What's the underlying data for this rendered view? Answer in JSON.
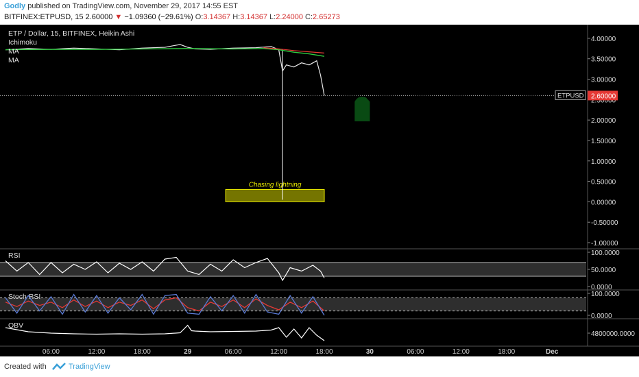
{
  "header": {
    "author": "Godly",
    "published_text": "published on TradingView.com, November 29, 2017 14:55 EST",
    "symbol_line": "BITFINEX:ETPUSD, 15",
    "last_price": "2.60000",
    "change": "−1.09360 (−29.61%)",
    "o_label": "O:",
    "o_value": "3.14367",
    "h_label": "H:",
    "h_value": "3.14367",
    "l_label": "L:",
    "l_value": "2.24000",
    "c_label": "C:",
    "c_value": "2.65273"
  },
  "footer": {
    "created_with": "Created with",
    "brand": "TradingView"
  },
  "colors": {
    "background": "#000000",
    "ma_green": "#2ecc40",
    "ma_red": "#e53935",
    "annotation_fill": "#8a8a00",
    "annotation_border": "#e6e600",
    "price_tag": "#e53935",
    "rsi_line": "#ffffff",
    "stoch_k": "#5b7bd5",
    "stoch_d": "#e53935"
  },
  "chart_data": [
    {
      "type": "line",
      "title": "ETP / Dollar, 15, BITFINEX, Heikin Ashi",
      "indicator_labels": [
        "Ichimoku",
        "MA",
        "MA"
      ],
      "price_tag_label": "ETPUSD",
      "price_tag_value": "2.60000",
      "annotation_text": "Chasing lightning",
      "annotation_zone": [
        0.0,
        0.3
      ],
      "ylim": [
        -1.0,
        4.2
      ],
      "y_ticks": [
        "4.00000",
        "3.50000",
        "3.00000",
        "2.50000",
        "2.00000",
        "1.50000",
        "1.00000",
        "0.50000",
        "0.00000",
        "-0.50000",
        "-1.00000"
      ],
      "y_tick_values": [
        4.0,
        3.5,
        3.0,
        2.5,
        2.0,
        1.5,
        1.0,
        0.5,
        0.0,
        -0.5,
        -1.0
      ],
      "x_labels": [
        "06:00",
        "12:00",
        "18:00",
        "29",
        "06:00",
        "12:00",
        "18:00",
        "30",
        "06:00",
        "12:00",
        "18:00",
        "Dec"
      ],
      "x_label_hours": [
        6,
        12,
        18,
        24,
        30,
        36,
        42,
        48,
        54,
        60,
        66,
        72
      ],
      "x_range_hours": [
        0,
        76.5
      ],
      "series": [
        {
          "name": "Price",
          "x": [
            0,
            3,
            6,
            9,
            12,
            15,
            18,
            21,
            23,
            24,
            25,
            27,
            30,
            33,
            35,
            36,
            36.5,
            37,
            38,
            39,
            40,
            41,
            41.5,
            42
          ],
          "values": [
            3.72,
            3.75,
            3.73,
            3.76,
            3.74,
            3.72,
            3.76,
            3.78,
            3.85,
            3.78,
            3.74,
            3.73,
            3.76,
            3.77,
            3.8,
            3.72,
            3.2,
            3.35,
            3.3,
            3.4,
            3.35,
            3.45,
            3.1,
            2.6
          ]
        },
        {
          "name": "MA",
          "x": [
            0,
            6,
            12,
            18,
            24,
            30,
            34,
            36,
            38,
            40,
            42
          ],
          "values": [
            3.72,
            3.73,
            3.73,
            3.74,
            3.75,
            3.74,
            3.75,
            3.72,
            3.66,
            3.62,
            3.56
          ]
        },
        {
          "name": "MA",
          "x": [
            34,
            36,
            38,
            40,
            42
          ],
          "values": [
            3.77,
            3.74,
            3.7,
            3.67,
            3.64
          ]
        }
      ],
      "spike_low": {
        "x": 36.5,
        "value": 0.05
      }
    },
    {
      "type": "line",
      "title": "RSI",
      "ylim": [
        0,
        100
      ],
      "y_ticks": [
        "100.0000",
        "50.0000",
        "0.0000"
      ],
      "y_tick_values": [
        100,
        50,
        0
      ],
      "bands": [
        30,
        70
      ],
      "x": [
        0,
        1.5,
        3,
        4.5,
        6,
        7.5,
        9,
        10.5,
        12,
        13.5,
        15,
        16.5,
        18,
        19.5,
        21,
        22.5,
        24,
        25.5,
        27,
        28.5,
        30,
        31.5,
        33,
        34.5,
        36,
        36.5,
        37.5,
        39,
        40.5,
        41.5,
        42
      ],
      "values": [
        75,
        45,
        70,
        35,
        70,
        40,
        65,
        50,
        72,
        40,
        68,
        50,
        72,
        45,
        80,
        85,
        45,
        35,
        65,
        45,
        78,
        55,
        70,
        82,
        40,
        18,
        55,
        45,
        62,
        45,
        25
      ]
    },
    {
      "type": "line",
      "title": "Stoch RSI",
      "ylim": [
        0,
        100
      ],
      "y_ticks": [
        "100.0000",
        "0.0000"
      ],
      "y_tick_values": [
        100,
        0
      ],
      "bands": [
        20,
        80
      ],
      "series": [
        {
          "name": "K",
          "x": [
            0,
            1.5,
            3,
            4.5,
            6,
            7.5,
            9,
            10.5,
            12,
            13.5,
            15,
            16.5,
            18,
            19.5,
            21,
            22.5,
            24,
            25.5,
            27,
            28.5,
            30,
            31.5,
            33,
            34.5,
            36,
            37.5,
            39,
            40.5,
            42
          ],
          "values": [
            80,
            10,
            90,
            20,
            85,
            5,
            95,
            15,
            90,
            10,
            80,
            25,
            95,
            5,
            90,
            95,
            10,
            5,
            85,
            20,
            90,
            10,
            95,
            15,
            5,
            90,
            10,
            85,
            0
          ]
        },
        {
          "name": "D",
          "x": [
            0,
            1.5,
            3,
            4.5,
            6,
            7.5,
            9,
            10.5,
            12,
            13.5,
            15,
            16.5,
            18,
            19.5,
            21,
            22.5,
            24,
            25.5,
            27,
            28.5,
            30,
            31.5,
            33,
            34.5,
            36,
            37.5,
            39,
            40.5,
            42
          ],
          "values": [
            60,
            40,
            65,
            45,
            60,
            35,
            70,
            40,
            65,
            35,
            60,
            45,
            70,
            30,
            70,
            80,
            35,
            20,
            60,
            40,
            70,
            35,
            75,
            45,
            25,
            60,
            35,
            65,
            20
          ]
        }
      ]
    },
    {
      "type": "line",
      "title": "OBV",
      "y_ticks": [
        "4800000.0000"
      ],
      "y_tick_values": [
        4800000
      ],
      "ylim": [
        3400000,
        6400000
      ],
      "x": [
        0,
        3,
        6,
        9,
        12,
        15,
        18,
        21,
        23,
        24,
        24.5,
        25,
        27,
        30,
        33,
        35,
        36,
        37,
        38,
        39,
        40,
        41,
        42
      ],
      "values": [
        5600000,
        5000000,
        4800000,
        4700000,
        4650000,
        4700000,
        4650000,
        4700000,
        4850000,
        5950000,
        5150000,
        5100000,
        5000000,
        5050000,
        5100000,
        5250000,
        5600000,
        4200000,
        5400000,
        4100000,
        5600000,
        4500000,
        3700000
      ]
    }
  ]
}
